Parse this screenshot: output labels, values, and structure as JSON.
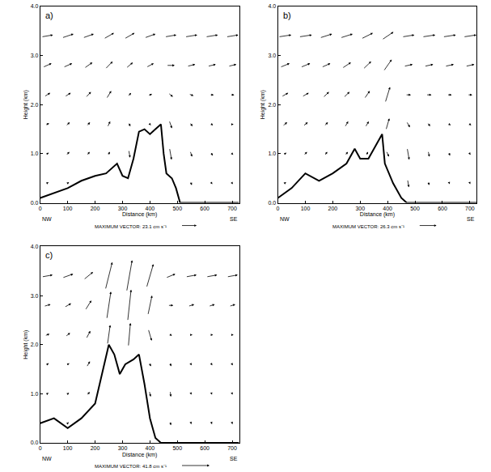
{
  "chart_data": [
    {
      "type": "vector",
      "title": "a)",
      "xlabel": "Distance (km)",
      "ylabel": "Height (km)",
      "x_end_labels": [
        "NW",
        "SE"
      ],
      "color": "#000000",
      "grid": false,
      "xlim": [
        0,
        725
      ],
      "ylim": [
        0,
        4
      ],
      "xticks": [
        0,
        100,
        200,
        300,
        400,
        500,
        600,
        700
      ],
      "yticks": [
        {
          "value": 0,
          "label": "0.0"
        },
        {
          "value": 1,
          "label": "1.0"
        },
        {
          "value": 2,
          "label": "2.0"
        },
        {
          "value": 3,
          "label": "3.0"
        },
        {
          "value": 4,
          "label": "4.0"
        }
      ],
      "terrain": {
        "x": [
          0,
          50,
          100,
          150,
          200,
          240,
          260,
          280,
          300,
          320,
          340,
          360,
          380,
          400,
          420,
          440,
          450,
          460,
          480,
          495,
          510,
          725
        ],
        "y": [
          0.1,
          0.2,
          0.3,
          0.45,
          0.55,
          0.6,
          0.7,
          0.8,
          0.55,
          0.5,
          0.9,
          1.45,
          1.5,
          1.4,
          1.5,
          1.6,
          1.0,
          0.6,
          0.5,
          0.3,
          0.0,
          0.0
        ]
      },
      "vectors": {
        "x": [
          25,
          100,
          175,
          250,
          325,
          400,
          475,
          550,
          625,
          700
        ],
        "heights": [
          0.4,
          1.0,
          1.6,
          2.2,
          2.8,
          3.4
        ],
        "u": [
          [
            4,
            4,
            null,
            null,
            null,
            null,
            null,
            2,
            2,
            2
          ],
          [
            5,
            5,
            4,
            3,
            2,
            null,
            3,
            3,
            3,
            3
          ],
          [
            6,
            6,
            5,
            4,
            3,
            3,
            4,
            4,
            4,
            4
          ],
          [
            9,
            9,
            8,
            7,
            5,
            6,
            7,
            7,
            6,
            6
          ],
          [
            13,
            13,
            12,
            11,
            10,
            11,
            12,
            12,
            12,
            12
          ],
          [
            17,
            17,
            16,
            15,
            15,
            16,
            17,
            18,
            18,
            18
          ]
        ],
        "w": [
          [
            1,
            1,
            null,
            null,
            null,
            null,
            null,
            -2,
            -1,
            -1
          ],
          [
            1,
            2,
            2,
            2,
            -4,
            null,
            -6,
            -3,
            -2,
            -1
          ],
          [
            1,
            2,
            2,
            3,
            -2,
            -1,
            -4,
            -2,
            -1,
            0
          ],
          [
            2,
            2,
            3,
            4,
            2,
            1,
            -2,
            -1,
            0,
            0
          ],
          [
            2,
            2,
            3,
            4,
            3,
            2,
            0,
            1,
            1,
            1
          ],
          [
            1,
            2,
            2,
            3,
            3,
            2,
            1,
            1,
            1,
            1
          ]
        ]
      },
      "max_vector": {
        "value": 23.1,
        "label": "MAXIMUM VECTOR: 23.1 cm s⁻¹"
      }
    },
    {
      "type": "vector",
      "title": "b)",
      "xlabel": "Distance (km)",
      "ylabel": "Height (km)",
      "x_end_labels": [
        "NW",
        "SE"
      ],
      "color": "#000000",
      "grid": false,
      "xlim": [
        0,
        725
      ],
      "ylim": [
        0,
        4
      ],
      "xticks": [
        0,
        100,
        200,
        300,
        400,
        500,
        600,
        700
      ],
      "yticks": [
        {
          "value": 0,
          "label": "0.0"
        },
        {
          "value": 1,
          "label": "1.0"
        },
        {
          "value": 2,
          "label": "2.0"
        },
        {
          "value": 3,
          "label": "3.0"
        },
        {
          "value": 4,
          "label": "4.0"
        }
      ],
      "terrain": {
        "x": [
          0,
          50,
          100,
          150,
          200,
          250,
          280,
          300,
          330,
          360,
          380,
          390,
          420,
          450,
          470,
          725
        ],
        "y": [
          0.1,
          0.3,
          0.6,
          0.45,
          0.6,
          0.8,
          1.1,
          0.9,
          0.9,
          1.2,
          1.4,
          0.8,
          0.4,
          0.1,
          0.0,
          0.0
        ]
      },
      "vectors": {
        "x": [
          25,
          100,
          175,
          250,
          325,
          400,
          475,
          550,
          625,
          700
        ],
        "heights": [
          0.4,
          1.0,
          1.6,
          2.2,
          2.8,
          3.4
        ],
        "u": [
          [
            4,
            null,
            null,
            null,
            null,
            null,
            2,
            1,
            1,
            1
          ],
          [
            5,
            5,
            4,
            4,
            3,
            4,
            3,
            2,
            2,
            2
          ],
          [
            7,
            7,
            6,
            5,
            5,
            5,
            5,
            4,
            4,
            4
          ],
          [
            10,
            10,
            9,
            9,
            8,
            7,
            8,
            8,
            7,
            7
          ],
          [
            14,
            14,
            13,
            13,
            12,
            12,
            13,
            13,
            13,
            13
          ],
          [
            19,
            19,
            18,
            18,
            17,
            17,
            18,
            19,
            19,
            19
          ]
        ],
        "w": [
          [
            1,
            null,
            null,
            null,
            null,
            null,
            -4,
            -2,
            -1,
            -1
          ],
          [
            1,
            2,
            2,
            2,
            2,
            -3,
            -6,
            -3,
            -2,
            -1
          ],
          [
            2,
            2,
            2,
            3,
            3,
            6,
            -3,
            -2,
            -1,
            -1
          ],
          [
            2,
            2,
            3,
            3,
            4,
            8,
            0,
            0,
            0,
            0
          ],
          [
            2,
            2,
            2,
            3,
            4,
            6,
            1,
            1,
            1,
            1
          ],
          [
            1,
            1,
            2,
            2,
            3,
            4,
            1,
            1,
            1,
            1
          ]
        ]
      },
      "max_vector": {
        "value": 26.3,
        "label": "MAXIMUM VECTOR: 26.3 cm s⁻¹"
      }
    },
    {
      "type": "vector",
      "title": "c)",
      "xlabel": "Distance (km)",
      "ylabel": "Height (km)",
      "x_end_labels": [
        "NW",
        "SE"
      ],
      "color": "#000000",
      "grid": false,
      "xlim": [
        0,
        725
      ],
      "ylim": [
        0,
        4
      ],
      "xticks": [
        0,
        100,
        200,
        300,
        400,
        500,
        600,
        700
      ],
      "yticks": [
        {
          "value": 0,
          "label": "0.0"
        },
        {
          "value": 1,
          "label": "1.0"
        },
        {
          "value": 2,
          "label": "2.0"
        },
        {
          "value": 3,
          "label": "3.0"
        },
        {
          "value": 4,
          "label": "4.0"
        }
      ],
      "terrain": {
        "x": [
          0,
          50,
          100,
          150,
          200,
          230,
          250,
          270,
          290,
          310,
          340,
          360,
          380,
          400,
          420,
          440,
          725
        ],
        "y": [
          0.4,
          0.5,
          0.3,
          0.5,
          0.8,
          1.5,
          2.0,
          1.8,
          1.4,
          1.6,
          1.7,
          1.8,
          1.2,
          0.5,
          0.1,
          0.0,
          0.0
        ]
      },
      "vectors": {
        "x": [
          25,
          100,
          175,
          250,
          325,
          400,
          475,
          550,
          625,
          700
        ],
        "heights": [
          0.4,
          1.0,
          1.6,
          2.2,
          2.8,
          3.4
        ],
        "u": [
          [
            null,
            3,
            null,
            null,
            null,
            null,
            1,
            1,
            1,
            1
          ],
          [
            4,
            4,
            4,
            null,
            null,
            2,
            1,
            1,
            1,
            1
          ],
          [
            5,
            5,
            5,
            null,
            null,
            3,
            2,
            2,
            2,
            2
          ],
          [
            7,
            7,
            6,
            4,
            3,
            5,
            4,
            4,
            4,
            4
          ],
          [
            10,
            10,
            9,
            6,
            5,
            6,
            8,
            9,
            9,
            9
          ],
          [
            16,
            16,
            14,
            10,
            8,
            10,
            14,
            16,
            16,
            16
          ]
        ],
        "w": [
          [
            null,
            1,
            null,
            null,
            null,
            null,
            -2,
            -1,
            -1,
            -1
          ],
          [
            1,
            1,
            2,
            null,
            null,
            -3,
            -3,
            -1,
            -1,
            -1
          ],
          [
            1,
            1,
            3,
            null,
            null,
            -2,
            -2,
            -1,
            -1,
            -1
          ],
          [
            1,
            2,
            4,
            10,
            12,
            -6,
            -1,
            0,
            0,
            0
          ],
          [
            1,
            2,
            5,
            14,
            16,
            10,
            0,
            1,
            1,
            1
          ],
          [
            1,
            2,
            4,
            14,
            16,
            12,
            2,
            1,
            1,
            1
          ]
        ]
      },
      "max_vector": {
        "value": 41.8,
        "label": "MAXIMUM VECTOR: 41.8 cm s⁻¹"
      }
    }
  ]
}
